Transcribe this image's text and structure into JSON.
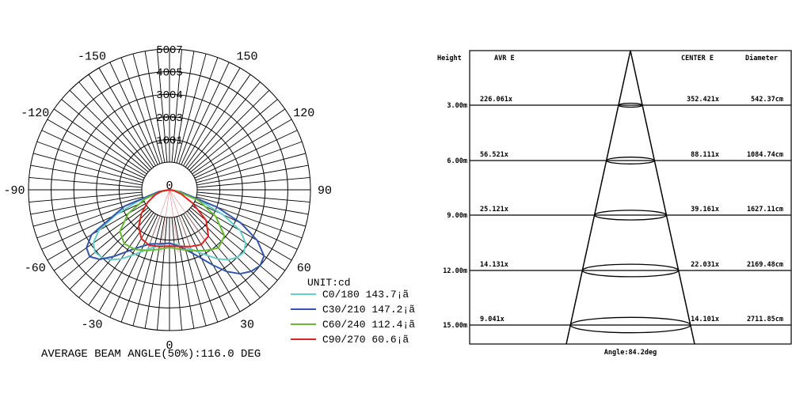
{
  "chart_data": [
    {
      "type": "polar",
      "subtype": "luminous-intensity-distribution",
      "rings": [
        1001,
        2003,
        3004,
        4005,
        5007
      ],
      "ring_max": 5007,
      "angle_labels": [
        {
          "angle": 0,
          "text": "0"
        },
        {
          "angle": 30,
          "text": "30"
        },
        {
          "angle": 60,
          "text": "60"
        },
        {
          "angle": 90,
          "text": "90"
        },
        {
          "angle": 120,
          "text": "120"
        },
        {
          "angle": 150,
          "text": "150"
        },
        {
          "angle": -30,
          "text": "-30"
        },
        {
          "angle": -60,
          "text": "-60"
        },
        {
          "angle": -90,
          "text": "-90"
        },
        {
          "angle": -120,
          "text": "-120"
        },
        {
          "angle": -150,
          "text": "-150"
        }
      ],
      "top_label": "0",
      "unit_label": "UNIT:cd",
      "beam_angle_label": "AVERAGE BEAM ANGLE(50%):116.0 DEG",
      "series": [
        {
          "name": "C0/180 143.7¡ã",
          "color": "#66cccc",
          "points": [
            [
              -90,
              0
            ],
            [
              -80,
              260
            ],
            [
              -70,
              1200
            ],
            [
              -65,
              2100
            ],
            [
              -60,
              2900
            ],
            [
              -55,
              3300
            ],
            [
              -50,
              3450
            ],
            [
              -45,
              3400
            ],
            [
              -40,
              3250
            ],
            [
              -35,
              3000
            ],
            [
              -30,
              2700
            ],
            [
              -20,
              2250
            ],
            [
              -10,
              2000
            ],
            [
              0,
              1900
            ],
            [
              10,
              2000
            ],
            [
              20,
              2250
            ],
            [
              30,
              2700
            ],
            [
              35,
              3000
            ],
            [
              40,
              3250
            ],
            [
              45,
              3400
            ],
            [
              50,
              3450
            ],
            [
              55,
              3300
            ],
            [
              60,
              2900
            ],
            [
              65,
              2100
            ],
            [
              70,
              1200
            ],
            [
              80,
              260
            ],
            [
              90,
              0
            ]
          ]
        },
        {
          "name": "C30/210 147.2¡ã",
          "color": "#3355aa",
          "points": [
            [
              -90,
              0
            ],
            [
              -80,
              400
            ],
            [
              -70,
              1700
            ],
            [
              -60,
              3200
            ],
            [
              -55,
              3600
            ],
            [
              -50,
              3700
            ],
            [
              -45,
              3500
            ],
            [
              -40,
              3100
            ],
            [
              -30,
              2400
            ],
            [
              -20,
              2050
            ],
            [
              -10,
              1950
            ],
            [
              0,
              1900
            ],
            [
              10,
              2050
            ],
            [
              20,
              2400
            ],
            [
              30,
              3100
            ],
            [
              35,
              3550
            ],
            [
              40,
              3900
            ],
            [
              45,
              4100
            ],
            [
              50,
              4200
            ],
            [
              55,
              4100
            ],
            [
              60,
              3600
            ],
            [
              65,
              2800
            ],
            [
              70,
              1800
            ],
            [
              80,
              400
            ],
            [
              90,
              0
            ]
          ]
        },
        {
          "name": "C60/240 112.4¡ã",
          "color": "#66bb33",
          "points": [
            [
              -90,
              0
            ],
            [
              -80,
              250
            ],
            [
              -70,
              900
            ],
            [
              -60,
              1700
            ],
            [
              -50,
              2300
            ],
            [
              -40,
              2500
            ],
            [
              -30,
              2450
            ],
            [
              -20,
              2300
            ],
            [
              -10,
              2150
            ],
            [
              0,
              2050
            ],
            [
              10,
              2150
            ],
            [
              20,
              2300
            ],
            [
              30,
              2500
            ],
            [
              40,
              2700
            ],
            [
              50,
              2550
            ],
            [
              60,
              1900
            ],
            [
              70,
              1100
            ],
            [
              80,
              300
            ],
            [
              90,
              0
            ]
          ]
        },
        {
          "name": "C90/270 60.6¡ã",
          "color": "#dd2222",
          "points": [
            [
              -90,
              0
            ],
            [
              -80,
              300
            ],
            [
              -70,
              550
            ],
            [
              -60,
              900
            ],
            [
              -50,
              1300
            ],
            [
              -40,
              1700
            ],
            [
              -30,
              2000
            ],
            [
              -20,
              2100
            ],
            [
              -10,
              2050
            ],
            [
              0,
              2000
            ],
            [
              10,
              2050
            ],
            [
              20,
              2150
            ],
            [
              30,
              2250
            ],
            [
              40,
              2150
            ],
            [
              50,
              1700
            ],
            [
              60,
              950
            ],
            [
              70,
              450
            ],
            [
              80,
              150
            ],
            [
              90,
              0
            ]
          ]
        }
      ]
    },
    {
      "type": "table",
      "subtype": "illuminance-cone",
      "headers": {
        "height": "Height",
        "avr": "AVR E",
        "center": "CENTER E",
        "diameter": "Diameter"
      },
      "rows": [
        {
          "height": "3.00m",
          "avr": "226.061x",
          "center": "352.421x",
          "diameter": "542.37cm"
        },
        {
          "height": "6.00m",
          "avr": "56.521x",
          "center": "88.111x",
          "diameter": "1084.74cm"
        },
        {
          "height": "9.00m",
          "avr": "25.121x",
          "center": "39.161x",
          "diameter": "1627.11cm"
        },
        {
          "height": "12.00m",
          "avr": "14.131x",
          "center": "22.031x",
          "diameter": "2169.48cm"
        },
        {
          "height": "15.00m",
          "avr": "9.041x",
          "center": "14.101x",
          "diameter": "2711.85cm"
        }
      ],
      "angle_label": "Angle:84.2deg"
    }
  ]
}
